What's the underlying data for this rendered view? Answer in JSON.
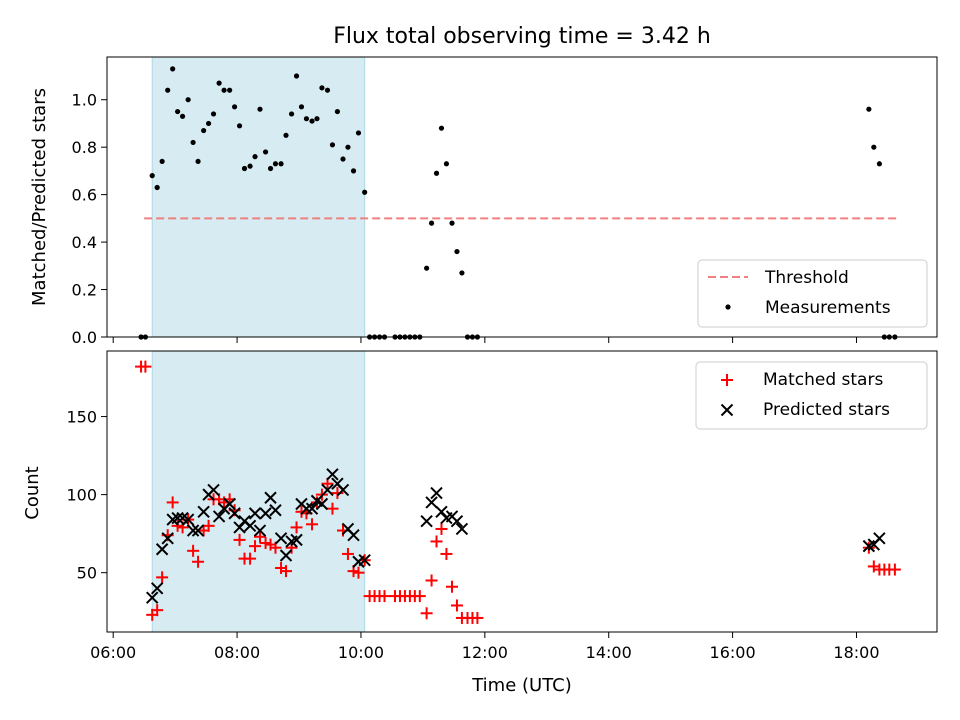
{
  "figure": {
    "title": "Flux total observing time = 3.42 h"
  },
  "colors": {
    "measurement": "#000000",
    "matched": "#ff0000",
    "predicted": "#000000",
    "threshold": "#f08080",
    "span_fill": "#add8e6"
  },
  "chart_data": [
    {
      "type": "scatter",
      "panel": "top",
      "title": "Flux total observing time = 3.42 h",
      "xlabel": "",
      "ylabel": "Matched/Predicted stars",
      "x_unit": "hours (UTC)",
      "xlim": [
        5.9,
        19.3
      ],
      "ylim": [
        0,
        1.18
      ],
      "yticks": [
        0.0,
        0.2,
        0.4,
        0.6,
        0.8,
        1.0
      ],
      "ytick_labels": [
        "0.0",
        "0.2",
        "0.4",
        "0.6",
        "0.8",
        "1.0"
      ],
      "xticks": [
        6,
        8,
        10,
        12,
        14,
        16,
        18
      ],
      "highlight_span": {
        "x0": 6.63,
        "x1": 10.06
      },
      "threshold": {
        "name": "Threshold",
        "y": 0.5,
        "x0": 6.5,
        "x1": 18.65
      },
      "legend": {
        "placement": "lower right",
        "entries": [
          "Threshold",
          "Measurements"
        ]
      },
      "series": [
        {
          "name": "Measurements",
          "points": [
            [
              6.45,
              0.0
            ],
            [
              6.52,
              0.0
            ],
            [
              6.63,
              0.68
            ],
            [
              6.71,
              0.63
            ],
            [
              6.79,
              0.74
            ],
            [
              6.88,
              1.04
            ],
            [
              6.96,
              1.13
            ],
            [
              7.04,
              0.95
            ],
            [
              7.12,
              0.93
            ],
            [
              7.21,
              1.0
            ],
            [
              7.29,
              0.82
            ],
            [
              7.37,
              0.74
            ],
            [
              7.46,
              0.87
            ],
            [
              7.54,
              0.9
            ],
            [
              7.62,
              0.94
            ],
            [
              7.71,
              1.07
            ],
            [
              7.79,
              1.04
            ],
            [
              7.88,
              1.04
            ],
            [
              7.96,
              0.97
            ],
            [
              8.04,
              0.89
            ],
            [
              8.12,
              0.71
            ],
            [
              8.21,
              0.72
            ],
            [
              8.29,
              0.76
            ],
            [
              8.37,
              0.96
            ],
            [
              8.46,
              0.78
            ],
            [
              8.54,
              0.71
            ],
            [
              8.62,
              0.73
            ],
            [
              8.71,
              0.73
            ],
            [
              8.79,
              0.85
            ],
            [
              8.88,
              0.94
            ],
            [
              8.96,
              1.1
            ],
            [
              9.04,
              0.97
            ],
            [
              9.12,
              0.92
            ],
            [
              9.21,
              0.91
            ],
            [
              9.29,
              0.92
            ],
            [
              9.37,
              1.05
            ],
            [
              9.46,
              1.04
            ],
            [
              9.54,
              0.81
            ],
            [
              9.62,
              0.95
            ],
            [
              9.71,
              0.75
            ],
            [
              9.79,
              0.8
            ],
            [
              9.88,
              0.7
            ],
            [
              9.96,
              0.86
            ],
            [
              10.06,
              0.61
            ],
            [
              10.14,
              0.0
            ],
            [
              10.22,
              0.0
            ],
            [
              10.3,
              0.0
            ],
            [
              10.38,
              0.0
            ],
            [
              10.55,
              0.0
            ],
            [
              10.63,
              0.0
            ],
            [
              10.71,
              0.0
            ],
            [
              10.79,
              0.0
            ],
            [
              10.87,
              0.0
            ],
            [
              10.95,
              0.0
            ],
            [
              11.06,
              0.29
            ],
            [
              11.14,
              0.48
            ],
            [
              11.22,
              0.69
            ],
            [
              11.3,
              0.88
            ],
            [
              11.38,
              0.73
            ],
            [
              11.47,
              0.48
            ],
            [
              11.55,
              0.36
            ],
            [
              11.63,
              0.27
            ],
            [
              11.72,
              0.0
            ],
            [
              11.8,
              0.0
            ],
            [
              11.88,
              0.0
            ],
            [
              18.2,
              0.96
            ],
            [
              18.28,
              0.8
            ],
            [
              18.37,
              0.73
            ],
            [
              18.45,
              0.0
            ],
            [
              18.53,
              0.0
            ],
            [
              18.62,
              0.0
            ]
          ]
        }
      ]
    },
    {
      "type": "scatter",
      "panel": "bottom",
      "title": "",
      "xlabel": "Time (UTC)",
      "ylabel": "Count",
      "x_unit": "hours (UTC)",
      "xlim": [
        5.9,
        19.3
      ],
      "ylim": [
        12,
        192
      ],
      "yticks": [
        50,
        100,
        150
      ],
      "ytick_labels": [
        "50",
        "100",
        "150"
      ],
      "xticks": [
        6,
        8,
        10,
        12,
        14,
        16,
        18
      ],
      "xtick_labels": [
        "06:00",
        "08:00",
        "10:00",
        "12:00",
        "14:00",
        "16:00",
        "18:00"
      ],
      "highlight_span": {
        "x0": 6.63,
        "x1": 10.06
      },
      "legend": {
        "placement": "upper right",
        "entries": [
          "Matched stars",
          "Predicted stars"
        ]
      },
      "series": [
        {
          "name": "Matched stars",
          "marker": "plus",
          "points": [
            [
              6.45,
              182
            ],
            [
              6.52,
              182
            ],
            [
              6.63,
              23
            ],
            [
              6.71,
              26
            ],
            [
              6.79,
              47
            ],
            [
              6.88,
              74
            ],
            [
              6.96,
              95
            ],
            [
              7.04,
              80
            ],
            [
              7.12,
              79
            ],
            [
              7.21,
              84
            ],
            [
              7.29,
              64
            ],
            [
              7.37,
              57
            ],
            [
              7.46,
              77
            ],
            [
              7.54,
              80
            ],
            [
              7.62,
              97
            ],
            [
              7.71,
              97
            ],
            [
              7.79,
              95
            ],
            [
              7.88,
              97
            ],
            [
              7.96,
              90
            ],
            [
              8.04,
              71
            ],
            [
              8.12,
              59
            ],
            [
              8.21,
              59
            ],
            [
              8.29,
              67
            ],
            [
              8.37,
              73
            ],
            [
              8.46,
              69
            ],
            [
              8.54,
              68
            ],
            [
              8.62,
              66
            ],
            [
              8.71,
              53
            ],
            [
              8.79,
              51
            ],
            [
              8.88,
              66
            ],
            [
              8.96,
              79
            ],
            [
              9.04,
              89
            ],
            [
              9.12,
              88
            ],
            [
              9.21,
              81
            ],
            [
              9.29,
              95
            ],
            [
              9.37,
              100
            ],
            [
              9.46,
              107
            ],
            [
              9.54,
              91
            ],
            [
              9.62,
              101
            ],
            [
              9.71,
              77
            ],
            [
              9.79,
              62
            ],
            [
              9.88,
              51
            ],
            [
              9.96,
              50
            ],
            [
              10.06,
              58
            ],
            [
              10.14,
              35
            ],
            [
              10.22,
              35
            ],
            [
              10.3,
              35
            ],
            [
              10.38,
              35
            ],
            [
              10.55,
              35
            ],
            [
              10.63,
              35
            ],
            [
              10.71,
              35
            ],
            [
              10.79,
              35
            ],
            [
              10.87,
              35
            ],
            [
              10.95,
              35
            ],
            [
              11.06,
              24
            ],
            [
              11.14,
              45
            ],
            [
              11.22,
              70
            ],
            [
              11.3,
              78
            ],
            [
              11.38,
              62
            ],
            [
              11.47,
              41
            ],
            [
              11.55,
              29
            ],
            [
              11.63,
              21
            ],
            [
              11.72,
              21
            ],
            [
              11.8,
              21
            ],
            [
              11.88,
              21
            ],
            [
              18.2,
              66
            ],
            [
              18.28,
              54
            ],
            [
              18.37,
              52
            ],
            [
              18.45,
              52
            ],
            [
              18.53,
              52
            ],
            [
              18.62,
              52
            ]
          ]
        },
        {
          "name": "Predicted stars",
          "marker": "x",
          "points": [
            [
              6.63,
              34
            ],
            [
              6.71,
              40
            ],
            [
              6.79,
              65
            ],
            [
              6.88,
              72
            ],
            [
              6.96,
              84
            ],
            [
              7.04,
              85
            ],
            [
              7.12,
              85
            ],
            [
              7.21,
              84
            ],
            [
              7.29,
              77
            ],
            [
              7.37,
              77
            ],
            [
              7.46,
              89
            ],
            [
              7.54,
              100
            ],
            [
              7.62,
              103
            ],
            [
              7.71,
              86
            ],
            [
              7.79,
              91
            ],
            [
              7.88,
              94
            ],
            [
              7.96,
              88
            ],
            [
              8.04,
              79
            ],
            [
              8.12,
              83
            ],
            [
              8.21,
              80
            ],
            [
              8.29,
              88
            ],
            [
              8.37,
              77
            ],
            [
              8.46,
              88
            ],
            [
              8.54,
              98
            ],
            [
              8.62,
              90
            ],
            [
              8.71,
              72
            ],
            [
              8.79,
              61
            ],
            [
              8.88,
              70
            ],
            [
              8.96,
              71
            ],
            [
              9.04,
              94
            ],
            [
              9.12,
              91
            ],
            [
              9.21,
              91
            ],
            [
              9.29,
              96
            ],
            [
              9.37,
              94
            ],
            [
              9.46,
              103
            ],
            [
              9.54,
              113
            ],
            [
              9.62,
              107
            ],
            [
              9.71,
              103
            ],
            [
              9.79,
              78
            ],
            [
              9.88,
              74
            ],
            [
              9.96,
              57
            ],
            [
              10.06,
              58
            ],
            [
              11.06,
              83
            ],
            [
              11.14,
              95
            ],
            [
              11.22,
              101
            ],
            [
              11.3,
              89
            ],
            [
              11.38,
              85
            ],
            [
              11.47,
              86
            ],
            [
              11.55,
              83
            ],
            [
              11.63,
              78
            ],
            [
              18.2,
              67
            ],
            [
              18.28,
              68
            ],
            [
              18.37,
              72
            ]
          ]
        }
      ]
    }
  ]
}
